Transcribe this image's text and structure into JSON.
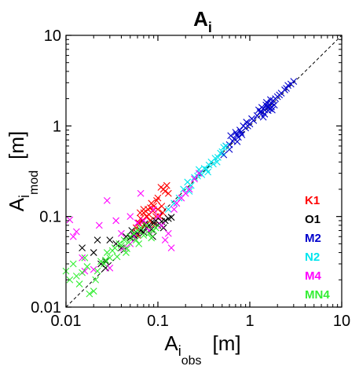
{
  "chart_data": {
    "type": "scatter",
    "title": {
      "main": "A",
      "sub": "i"
    },
    "xlabel": {
      "main": "A",
      "sub": "i",
      "subsub": "obs",
      "unit": "[m]"
    },
    "ylabel": {
      "main": "A",
      "sub": "i",
      "subsub": "mod",
      "unit": "[m]"
    },
    "xscale": "log",
    "yscale": "log",
    "xlim": [
      0.01,
      10
    ],
    "ylim": [
      0.01,
      10
    ],
    "xticks": [
      "0.01",
      "0.1",
      "1",
      "10"
    ],
    "yticks": [
      "0.01",
      "0.1",
      "1",
      "10"
    ],
    "grid": false,
    "reference_line": "y = x (dashed)",
    "marker": "x",
    "legend_position": "bottom-right",
    "series": [
      {
        "name": "K1",
        "color": "#ff0000",
        "points": [
          [
            0.058,
            0.075
          ],
          [
            0.062,
            0.085
          ],
          [
            0.065,
            0.095
          ],
          [
            0.068,
            0.09
          ],
          [
            0.07,
            0.11
          ],
          [
            0.072,
            0.08
          ],
          [
            0.075,
            0.1
          ],
          [
            0.078,
            0.12
          ],
          [
            0.08,
            0.105
          ],
          [
            0.082,
            0.09
          ],
          [
            0.085,
            0.14
          ],
          [
            0.088,
            0.115
          ],
          [
            0.09,
            0.13
          ],
          [
            0.095,
            0.1
          ],
          [
            0.1,
            0.12
          ],
          [
            0.1,
            0.16
          ],
          [
            0.105,
            0.1
          ],
          [
            0.11,
            0.13
          ],
          [
            0.115,
            0.2
          ],
          [
            0.12,
            0.19
          ],
          [
            0.125,
            0.22
          ],
          [
            0.13,
            0.18
          ],
          [
            0.108,
            0.21
          ],
          [
            0.07,
            0.12
          ],
          [
            0.064,
            0.11
          ],
          [
            0.09,
            0.08
          ],
          [
            0.097,
            0.15
          ],
          [
            0.083,
            0.125
          ],
          [
            0.076,
            0.1
          ],
          [
            0.113,
            0.11
          ],
          [
            0.06,
            0.062
          ]
        ]
      },
      {
        "name": "O1",
        "color": "#000000",
        "points": [
          [
            0.015,
            0.045
          ],
          [
            0.02,
            0.04
          ],
          [
            0.022,
            0.055
          ],
          [
            0.024,
            0.03
          ],
          [
            0.027,
            0.032
          ],
          [
            0.03,
            0.055
          ],
          [
            0.035,
            0.05
          ],
          [
            0.04,
            0.045
          ],
          [
            0.045,
            0.06
          ],
          [
            0.05,
            0.058
          ],
          [
            0.055,
            0.062
          ],
          [
            0.06,
            0.065
          ],
          [
            0.065,
            0.07
          ],
          [
            0.07,
            0.067
          ],
          [
            0.075,
            0.075
          ],
          [
            0.08,
            0.08
          ],
          [
            0.085,
            0.072
          ],
          [
            0.09,
            0.085
          ],
          [
            0.095,
            0.09
          ],
          [
            0.1,
            0.08
          ],
          [
            0.11,
            0.088
          ],
          [
            0.12,
            0.09
          ],
          [
            0.13,
            0.095
          ],
          [
            0.14,
            0.098
          ],
          [
            0.115,
            0.075
          ],
          [
            0.088,
            0.06
          ],
          [
            0.027,
            0.027
          ],
          [
            0.052,
            0.07
          ],
          [
            0.072,
            0.083
          ]
        ]
      },
      {
        "name": "M2",
        "color": "#0000cc",
        "points": [
          [
            0.52,
            0.48
          ],
          [
            0.55,
            0.6
          ],
          [
            0.6,
            0.62
          ],
          [
            0.62,
            0.78
          ],
          [
            0.65,
            0.68
          ],
          [
            0.68,
            0.72
          ],
          [
            0.7,
            0.85
          ],
          [
            0.72,
            0.8
          ],
          [
            0.75,
            0.75
          ],
          [
            0.78,
            0.9
          ],
          [
            0.8,
            0.85
          ],
          [
            0.82,
            0.8
          ],
          [
            0.85,
            1.0
          ],
          [
            0.9,
            0.95
          ],
          [
            0.95,
            1.0
          ],
          [
            1.0,
            1.05
          ],
          [
            1.05,
            1.2
          ],
          [
            1.1,
            1.15
          ],
          [
            1.2,
            1.3
          ],
          [
            1.25,
            1.5
          ],
          [
            1.3,
            1.4
          ],
          [
            1.35,
            1.6
          ],
          [
            1.4,
            1.55
          ],
          [
            1.45,
            1.5
          ],
          [
            1.5,
            1.7
          ],
          [
            1.55,
            1.6
          ],
          [
            1.6,
            1.65
          ],
          [
            1.65,
            1.55
          ],
          [
            1.7,
            1.8
          ],
          [
            1.75,
            1.5
          ],
          [
            1.8,
            1.9
          ],
          [
            1.9,
            2.0
          ],
          [
            2.0,
            2.1
          ],
          [
            2.1,
            2.2
          ],
          [
            2.2,
            2.3
          ],
          [
            2.4,
            2.5
          ],
          [
            2.5,
            2.6
          ],
          [
            2.6,
            2.8
          ],
          [
            2.8,
            2.9
          ],
          [
            3.0,
            3.1
          ],
          [
            1.45,
            1.35
          ],
          [
            1.58,
            1.48
          ],
          [
            1.63,
            1.72
          ],
          [
            1.72,
            1.62
          ],
          [
            1.52,
            1.82
          ],
          [
            1.4,
            1.25
          ],
          [
            1.85,
            1.7
          ],
          [
            0.92,
            1.1
          ],
          [
            0.73,
            0.67
          ],
          [
            0.6,
            0.55
          ],
          [
            1.68,
            1.95
          ],
          [
            1.32,
            1.45
          ]
        ]
      },
      {
        "name": "N2",
        "color": "#00e5ee",
        "points": [
          [
            0.13,
            0.12
          ],
          [
            0.15,
            0.14
          ],
          [
            0.17,
            0.16
          ],
          [
            0.19,
            0.2
          ],
          [
            0.21,
            0.24
          ],
          [
            0.23,
            0.22
          ],
          [
            0.25,
            0.27
          ],
          [
            0.27,
            0.28
          ],
          [
            0.29,
            0.3
          ],
          [
            0.3,
            0.29
          ],
          [
            0.32,
            0.34
          ],
          [
            0.34,
            0.33
          ],
          [
            0.36,
            0.37
          ],
          [
            0.38,
            0.4
          ],
          [
            0.4,
            0.38
          ],
          [
            0.42,
            0.44
          ],
          [
            0.45,
            0.45
          ],
          [
            0.48,
            0.5
          ],
          [
            0.5,
            0.52
          ],
          [
            0.52,
            0.58
          ],
          [
            0.55,
            0.6
          ],
          [
            0.28,
            0.33
          ],
          [
            0.35,
            0.31
          ],
          [
            0.22,
            0.19
          ],
          [
            0.44,
            0.4
          ]
        ]
      },
      {
        "name": "M4",
        "color": "#ff00ff",
        "points": [
          [
            0.011,
            0.092
          ],
          [
            0.012,
            0.06
          ],
          [
            0.013,
            0.068
          ],
          [
            0.015,
            0.035
          ],
          [
            0.016,
            0.025
          ],
          [
            0.02,
            0.026
          ],
          [
            0.023,
            0.08
          ],
          [
            0.028,
            0.15
          ],
          [
            0.03,
            0.027
          ],
          [
            0.035,
            0.09
          ],
          [
            0.04,
            0.065
          ],
          [
            0.042,
            0.045
          ],
          [
            0.05,
            0.05
          ],
          [
            0.055,
            0.06
          ],
          [
            0.06,
            0.085
          ],
          [
            0.065,
            0.18
          ],
          [
            0.07,
            0.09
          ],
          [
            0.08,
            0.07
          ],
          [
            0.09,
            0.12
          ],
          [
            0.1,
            0.1
          ],
          [
            0.11,
            0.08
          ],
          [
            0.12,
            0.055
          ],
          [
            0.13,
            0.065
          ],
          [
            0.14,
            0.045
          ],
          [
            0.15,
            0.12
          ],
          [
            0.16,
            0.14
          ],
          [
            0.18,
            0.16
          ],
          [
            0.2,
            0.18
          ],
          [
            0.22,
            0.2
          ],
          [
            0.25,
            0.26
          ],
          [
            0.28,
            0.3
          ],
          [
            0.05,
            0.1
          ]
        ]
      },
      {
        "name": "MN4",
        "color": "#33ee33",
        "points": [
          [
            0.01,
            0.025
          ],
          [
            0.011,
            0.02
          ],
          [
            0.012,
            0.03
          ],
          [
            0.013,
            0.022
          ],
          [
            0.014,
            0.018
          ],
          [
            0.016,
            0.035
          ],
          [
            0.017,
            0.028
          ],
          [
            0.018,
            0.014
          ],
          [
            0.02,
            0.015
          ],
          [
            0.022,
            0.025
          ],
          [
            0.024,
            0.032
          ],
          [
            0.026,
            0.03
          ],
          [
            0.028,
            0.04
          ],
          [
            0.03,
            0.035
          ],
          [
            0.032,
            0.042
          ],
          [
            0.034,
            0.045
          ],
          [
            0.036,
            0.036
          ],
          [
            0.038,
            0.05
          ],
          [
            0.04,
            0.048
          ],
          [
            0.043,
            0.055
          ],
          [
            0.045,
            0.04
          ],
          [
            0.048,
            0.052
          ],
          [
            0.05,
            0.06
          ],
          [
            0.055,
            0.065
          ],
          [
            0.058,
            0.055
          ],
          [
            0.06,
            0.07
          ],
          [
            0.065,
            0.075
          ],
          [
            0.07,
            0.062
          ],
          [
            0.075,
            0.08
          ],
          [
            0.08,
            0.065
          ],
          [
            0.085,
            0.058
          ],
          [
            0.09,
            0.07
          ],
          [
            0.095,
            0.075
          ],
          [
            0.015,
            0.024
          ],
          [
            0.021,
            0.02
          ],
          [
            0.027,
            0.033
          ],
          [
            0.046,
            0.044
          ],
          [
            0.062,
            0.05
          ]
        ]
      }
    ]
  }
}
